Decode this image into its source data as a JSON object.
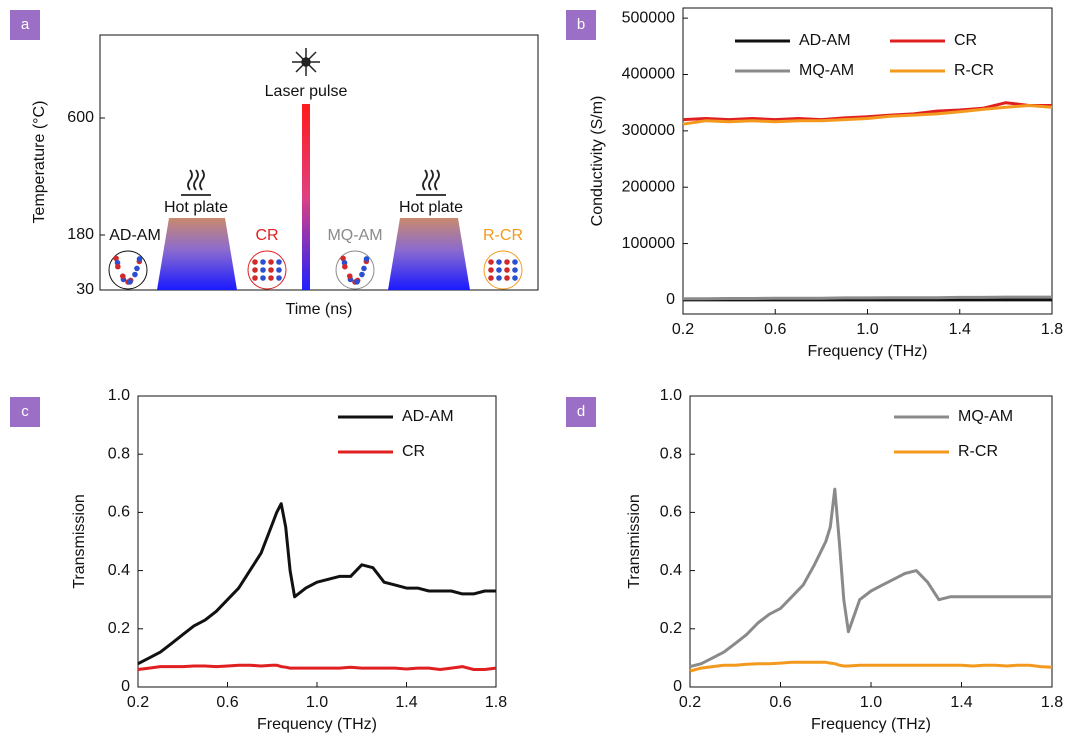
{
  "chart_data": [
    {
      "type": "schematic",
      "panel": "a",
      "ylabel": "Temperature (°C)",
      "xlabel": "Time (ns)",
      "yticks": [
        30,
        180,
        600
      ],
      "annotations": {
        "laser": "Laser pulse",
        "plate1": "Hot plate",
        "plate2": "Hot plate"
      },
      "states": [
        {
          "name": "AD-AM",
          "color": "#111111"
        },
        {
          "name": "CR",
          "color": "#e02020"
        },
        {
          "name": "MQ-AM",
          "color": "#8a8a8a"
        },
        {
          "name": "R-CR",
          "color": "#f39a1e"
        }
      ]
    },
    {
      "type": "line",
      "panel": "b",
      "xlabel": "Frequency (THz)",
      "ylabel": "Conductivity (S/m)",
      "x": [
        0.2,
        0.3,
        0.4,
        0.5,
        0.6,
        0.7,
        0.8,
        0.9,
        1.0,
        1.1,
        1.2,
        1.3,
        1.4,
        1.5,
        1.6,
        1.7,
        1.8
      ],
      "xlim": [
        0.2,
        1.8
      ],
      "xticks": [
        0.2,
        0.6,
        {
          "value": 1,
          "label": "1.0"
        },
        1.4,
        1.8
      ],
      "ylim": [
        -25000,
        518000
      ],
      "yticks": [
        0,
        100000,
        200000,
        300000,
        400000,
        500000
      ],
      "legend": "upper left",
      "series": [
        {
          "name": "AD-AM",
          "color": "#111111",
          "values": [
            0,
            0,
            0,
            0,
            0,
            0,
            0,
            0,
            0,
            0,
            0,
            0,
            0,
            0,
            0,
            0,
            0
          ]
        },
        {
          "name": "CR",
          "color": "#e02020",
          "values": [
            320000,
            322000,
            320000,
            322000,
            320000,
            322000,
            320000,
            323000,
            325000,
            328000,
            330000,
            335000,
            337000,
            340000,
            350000,
            345000,
            345000
          ]
        },
        {
          "name": "MQ-AM",
          "color": "#8a8a8a",
          "values": [
            2000,
            2000,
            2500,
            2500,
            3000,
            3000,
            3000,
            3500,
            3500,
            4000,
            4000,
            4000,
            4500,
            4500,
            5000,
            5000,
            5000
          ]
        },
        {
          "name": "R-CR",
          "color": "#f39a1e",
          "values": [
            312000,
            318000,
            316000,
            318000,
            316000,
            318000,
            318000,
            320000,
            322000,
            326000,
            328000,
            330000,
            334000,
            338000,
            342000,
            345000,
            342000
          ]
        }
      ]
    },
    {
      "type": "line",
      "panel": "c",
      "xlabel": "Frequency (THz)",
      "ylabel": "Transmission",
      "x": [
        0.2,
        0.25,
        0.3,
        0.35,
        0.4,
        0.45,
        0.5,
        0.55,
        0.6,
        0.65,
        0.7,
        0.75,
        0.8,
        0.82,
        0.84,
        0.86,
        0.88,
        0.9,
        0.95,
        1.0,
        1.05,
        1.1,
        1.15,
        1.2,
        1.25,
        1.3,
        1.35,
        1.4,
        1.45,
        1.5,
        1.55,
        1.6,
        1.65,
        1.7,
        1.75,
        1.8
      ],
      "xlim": [
        0.2,
        1.8
      ],
      "xticks": [
        0.2,
        0.6,
        {
          "value": 1,
          "label": "1.0"
        },
        1.4,
        1.8
      ],
      "ylim": [
        0,
        1
      ],
      "yticks": [
        0,
        0.2,
        0.4,
        0.6,
        0.8,
        {
          "value": 1,
          "label": "1.0"
        }
      ],
      "legend": "upper right",
      "series": [
        {
          "name": "AD-AM",
          "color": "#111111",
          "values": [
            0.08,
            0.1,
            0.12,
            0.15,
            0.18,
            0.21,
            0.23,
            0.26,
            0.3,
            0.34,
            0.4,
            0.46,
            0.56,
            0.6,
            0.63,
            0.55,
            0.4,
            0.31,
            0.34,
            0.36,
            0.37,
            0.38,
            0.38,
            0.42,
            0.41,
            0.36,
            0.35,
            0.34,
            0.34,
            0.33,
            0.33,
            0.33,
            0.32,
            0.32,
            0.33,
            0.33
          ]
        },
        {
          "name": "CR",
          "color": "#e02020",
          "values": [
            0.06,
            0.065,
            0.07,
            0.07,
            0.07,
            0.072,
            0.072,
            0.07,
            0.072,
            0.075,
            0.075,
            0.072,
            0.075,
            0.075,
            0.07,
            0.068,
            0.065,
            0.065,
            0.065,
            0.065,
            0.065,
            0.065,
            0.068,
            0.065,
            0.065,
            0.065,
            0.065,
            0.062,
            0.065,
            0.065,
            0.06,
            0.065,
            0.07,
            0.06,
            0.06,
            0.065
          ]
        }
      ]
    },
    {
      "type": "line",
      "panel": "d",
      "xlabel": "Frequency (THz)",
      "ylabel": "Transmission",
      "x": [
        0.2,
        0.25,
        0.3,
        0.35,
        0.4,
        0.45,
        0.5,
        0.55,
        0.6,
        0.65,
        0.7,
        0.75,
        0.8,
        0.82,
        0.84,
        0.86,
        0.88,
        0.9,
        0.95,
        1.0,
        1.05,
        1.1,
        1.15,
        1.2,
        1.25,
        1.3,
        1.35,
        1.4,
        1.45,
        1.5,
        1.55,
        1.6,
        1.65,
        1.7,
        1.75,
        1.8
      ],
      "xlim": [
        0.2,
        1.8
      ],
      "xticks": [
        0.2,
        0.6,
        {
          "value": 1,
          "label": "1.0"
        },
        1.4,
        1.8
      ],
      "ylim": [
        0,
        1
      ],
      "yticks": [
        0,
        0.2,
        0.4,
        0.6,
        0.8,
        {
          "value": 1,
          "label": "1.0"
        }
      ],
      "legend": "upper right",
      "series": [
        {
          "name": "MQ-AM",
          "color": "#8a8a8a",
          "values": [
            0.07,
            0.08,
            0.1,
            0.12,
            0.15,
            0.18,
            0.22,
            0.25,
            0.27,
            0.31,
            0.35,
            0.42,
            0.5,
            0.55,
            0.68,
            0.5,
            0.3,
            0.19,
            0.3,
            0.33,
            0.35,
            0.37,
            0.39,
            0.4,
            0.36,
            0.3,
            0.31,
            0.31,
            0.31,
            0.31,
            0.31,
            0.31,
            0.31,
            0.31,
            0.31,
            0.31
          ]
        },
        {
          "name": "R-CR",
          "color": "#f39a1e",
          "values": [
            0.055,
            0.065,
            0.07,
            0.075,
            0.075,
            0.078,
            0.08,
            0.08,
            0.082,
            0.085,
            0.085,
            0.085,
            0.085,
            0.082,
            0.08,
            0.075,
            0.072,
            0.072,
            0.075,
            0.075,
            0.075,
            0.075,
            0.075,
            0.075,
            0.075,
            0.075,
            0.075,
            0.075,
            0.072,
            0.075,
            0.075,
            0.072,
            0.075,
            0.075,
            0.07,
            0.068
          ]
        }
      ]
    }
  ]
}
